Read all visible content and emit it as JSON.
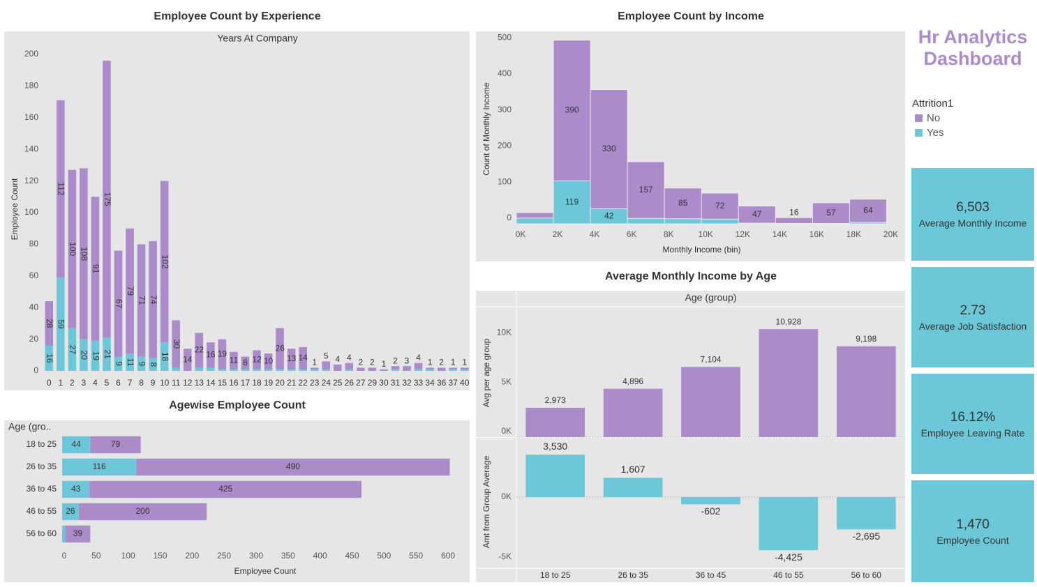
{
  "dashboard_title": "Hr Analytics Dashboard",
  "legend": {
    "title": "Attrition1"
  },
  "kpis": [
    {
      "value": "6,503",
      "label": "Average Monthly Income"
    },
    {
      "value": "2.73",
      "label": "Average Job Satisfaction"
    },
    {
      "value": "16.12%",
      "label": "Employee Leaving Rate"
    },
    {
      "value": "1,470",
      "label": "Employee Count"
    }
  ],
  "chart_data": [
    {
      "type": "bar",
      "stacked": true,
      "title": "Employee Count by Experience",
      "x_header": "Years At Company",
      "y_label": "Employee Count",
      "categories": [
        "0",
        "1",
        "2",
        "3",
        "4",
        "5",
        "6",
        "7",
        "8",
        "9",
        "10",
        "11",
        "12",
        "13",
        "14",
        "15",
        "16",
        "17",
        "18",
        "19",
        "20",
        "21",
        "22",
        "23",
        "24",
        "25",
        "26",
        "27",
        "29",
        "30",
        "31",
        "32",
        "33",
        "34",
        "36",
        "37",
        "40"
      ],
      "series": [
        {
          "name": "No",
          "color": "#ac8bca",
          "values": [
            28,
            112,
            100,
            108,
            91,
            175,
            67,
            79,
            71,
            74,
            102,
            30,
            14,
            22,
            16,
            19,
            11,
            8,
            12,
            10,
            26,
            13,
            14,
            1,
            5,
            4,
            4,
            2,
            2,
            1,
            2,
            3,
            4,
            1,
            2,
            1,
            1
          ]
        },
        {
          "name": "Yes",
          "color": "#6cc8d8",
          "values": [
            16,
            59,
            27,
            20,
            19,
            21,
            9,
            11,
            9,
            8,
            18,
            2,
            0,
            2,
            2,
            1,
            1,
            1,
            1,
            1,
            1,
            1,
            1,
            1,
            1,
            0,
            1,
            0,
            0,
            0,
            1,
            0,
            1,
            1,
            0,
            1,
            1
          ]
        }
      ],
      "ylim": [
        0,
        200
      ],
      "yticks": [
        0,
        20,
        40,
        60,
        80,
        100,
        120,
        140,
        160,
        180,
        200
      ],
      "grid": false
    },
    {
      "type": "histogram",
      "stacked": true,
      "title": "Employee Count by Income",
      "x_label": "Monthly Income (bin)",
      "y_label": "Count of Monthly Income",
      "bins": [
        0,
        2000,
        4000,
        6000,
        8000,
        10000,
        12000,
        14000,
        16000,
        18000,
        20000
      ],
      "series": [
        {
          "name": "No",
          "color": "#ac8bca",
          "values": [
            15,
            390,
            330,
            157,
            85,
            72,
            47,
            16,
            57,
            64
          ]
        },
        {
          "name": "Yes",
          "color": "#6cc8d8",
          "values": [
            16,
            119,
            42,
            15,
            14,
            13,
            2,
            1,
            1,
            4
          ]
        }
      ],
      "xlim": [
        0,
        21000
      ],
      "xticks": [
        {
          "value": 0,
          "label": "0K"
        },
        {
          "value": 2000,
          "label": "2K"
        },
        {
          "value": 4000,
          "label": "4K"
        },
        {
          "value": 6000,
          "label": "6K"
        },
        {
          "value": 8000,
          "label": "8K"
        },
        {
          "value": 10000,
          "label": "10K"
        },
        {
          "value": 12000,
          "label": "12K"
        },
        {
          "value": 14000,
          "label": "14K"
        },
        {
          "value": 16000,
          "label": "16K"
        },
        {
          "value": 18000,
          "label": "18K"
        },
        {
          "value": 20000,
          "label": "20K"
        }
      ],
      "ylim": [
        0,
        520
      ],
      "yticks": [
        0,
        100,
        200,
        300,
        400,
        500
      ],
      "grid": false
    },
    {
      "type": "bar",
      "title": "Average Monthly Income by Age",
      "x_header": "Age (group)",
      "categories": [
        "18 to 25",
        "26 to 35",
        "36 to 45",
        "46 to 55",
        "56 to 60"
      ],
      "panes": [
        {
          "y_label": "Avg per age group",
          "color": "#ac8bca",
          "values": [
            2973,
            4896,
            7104,
            10928,
            9198
          ],
          "value_labels": [
            "2,973",
            "4,896",
            "7,104",
            "10,928",
            "9,198"
          ],
          "ylim": [
            0,
            13200
          ],
          "yticks": [
            {
              "value": 0,
              "label": "0K"
            },
            {
              "value": 5000,
              "label": "5K"
            },
            {
              "value": 10000,
              "label": "10K"
            }
          ]
        },
        {
          "y_label": "Amt from Group Average",
          "color": "#6cc8d8",
          "values": [
            3530,
            1607,
            -602,
            -4425,
            -2695
          ],
          "value_labels": [
            "3,530",
            "1,607",
            "-602",
            "-4,425",
            "-2,695"
          ],
          "ylim": [
            -5930,
            4940
          ],
          "yticks": [
            {
              "value": -5000,
              "label": "-5K"
            },
            {
              "value": 0,
              "label": "0K"
            }
          ]
        }
      ]
    },
    {
      "type": "hbar",
      "stacked": true,
      "title": "Agewise Employee Count",
      "y_header": "Age (gro..",
      "x_label": "Employee Count",
      "categories": [
        "18 to 25",
        "26 to 35",
        "36 to 45",
        "46 to 55",
        "56 to 60"
      ],
      "series": [
        {
          "name": "No",
          "color": "#ac8bca",
          "values": [
            79,
            490,
            425,
            200,
            39
          ]
        },
        {
          "name": "Yes",
          "color": "#6cc8d8",
          "values": [
            44,
            116,
            43,
            26,
            5
          ]
        }
      ],
      "xlim": [
        0,
        636
      ],
      "xticks": [
        0,
        50,
        100,
        150,
        200,
        250,
        300,
        350,
        400,
        450,
        500,
        550,
        600
      ],
      "grid": false
    }
  ]
}
